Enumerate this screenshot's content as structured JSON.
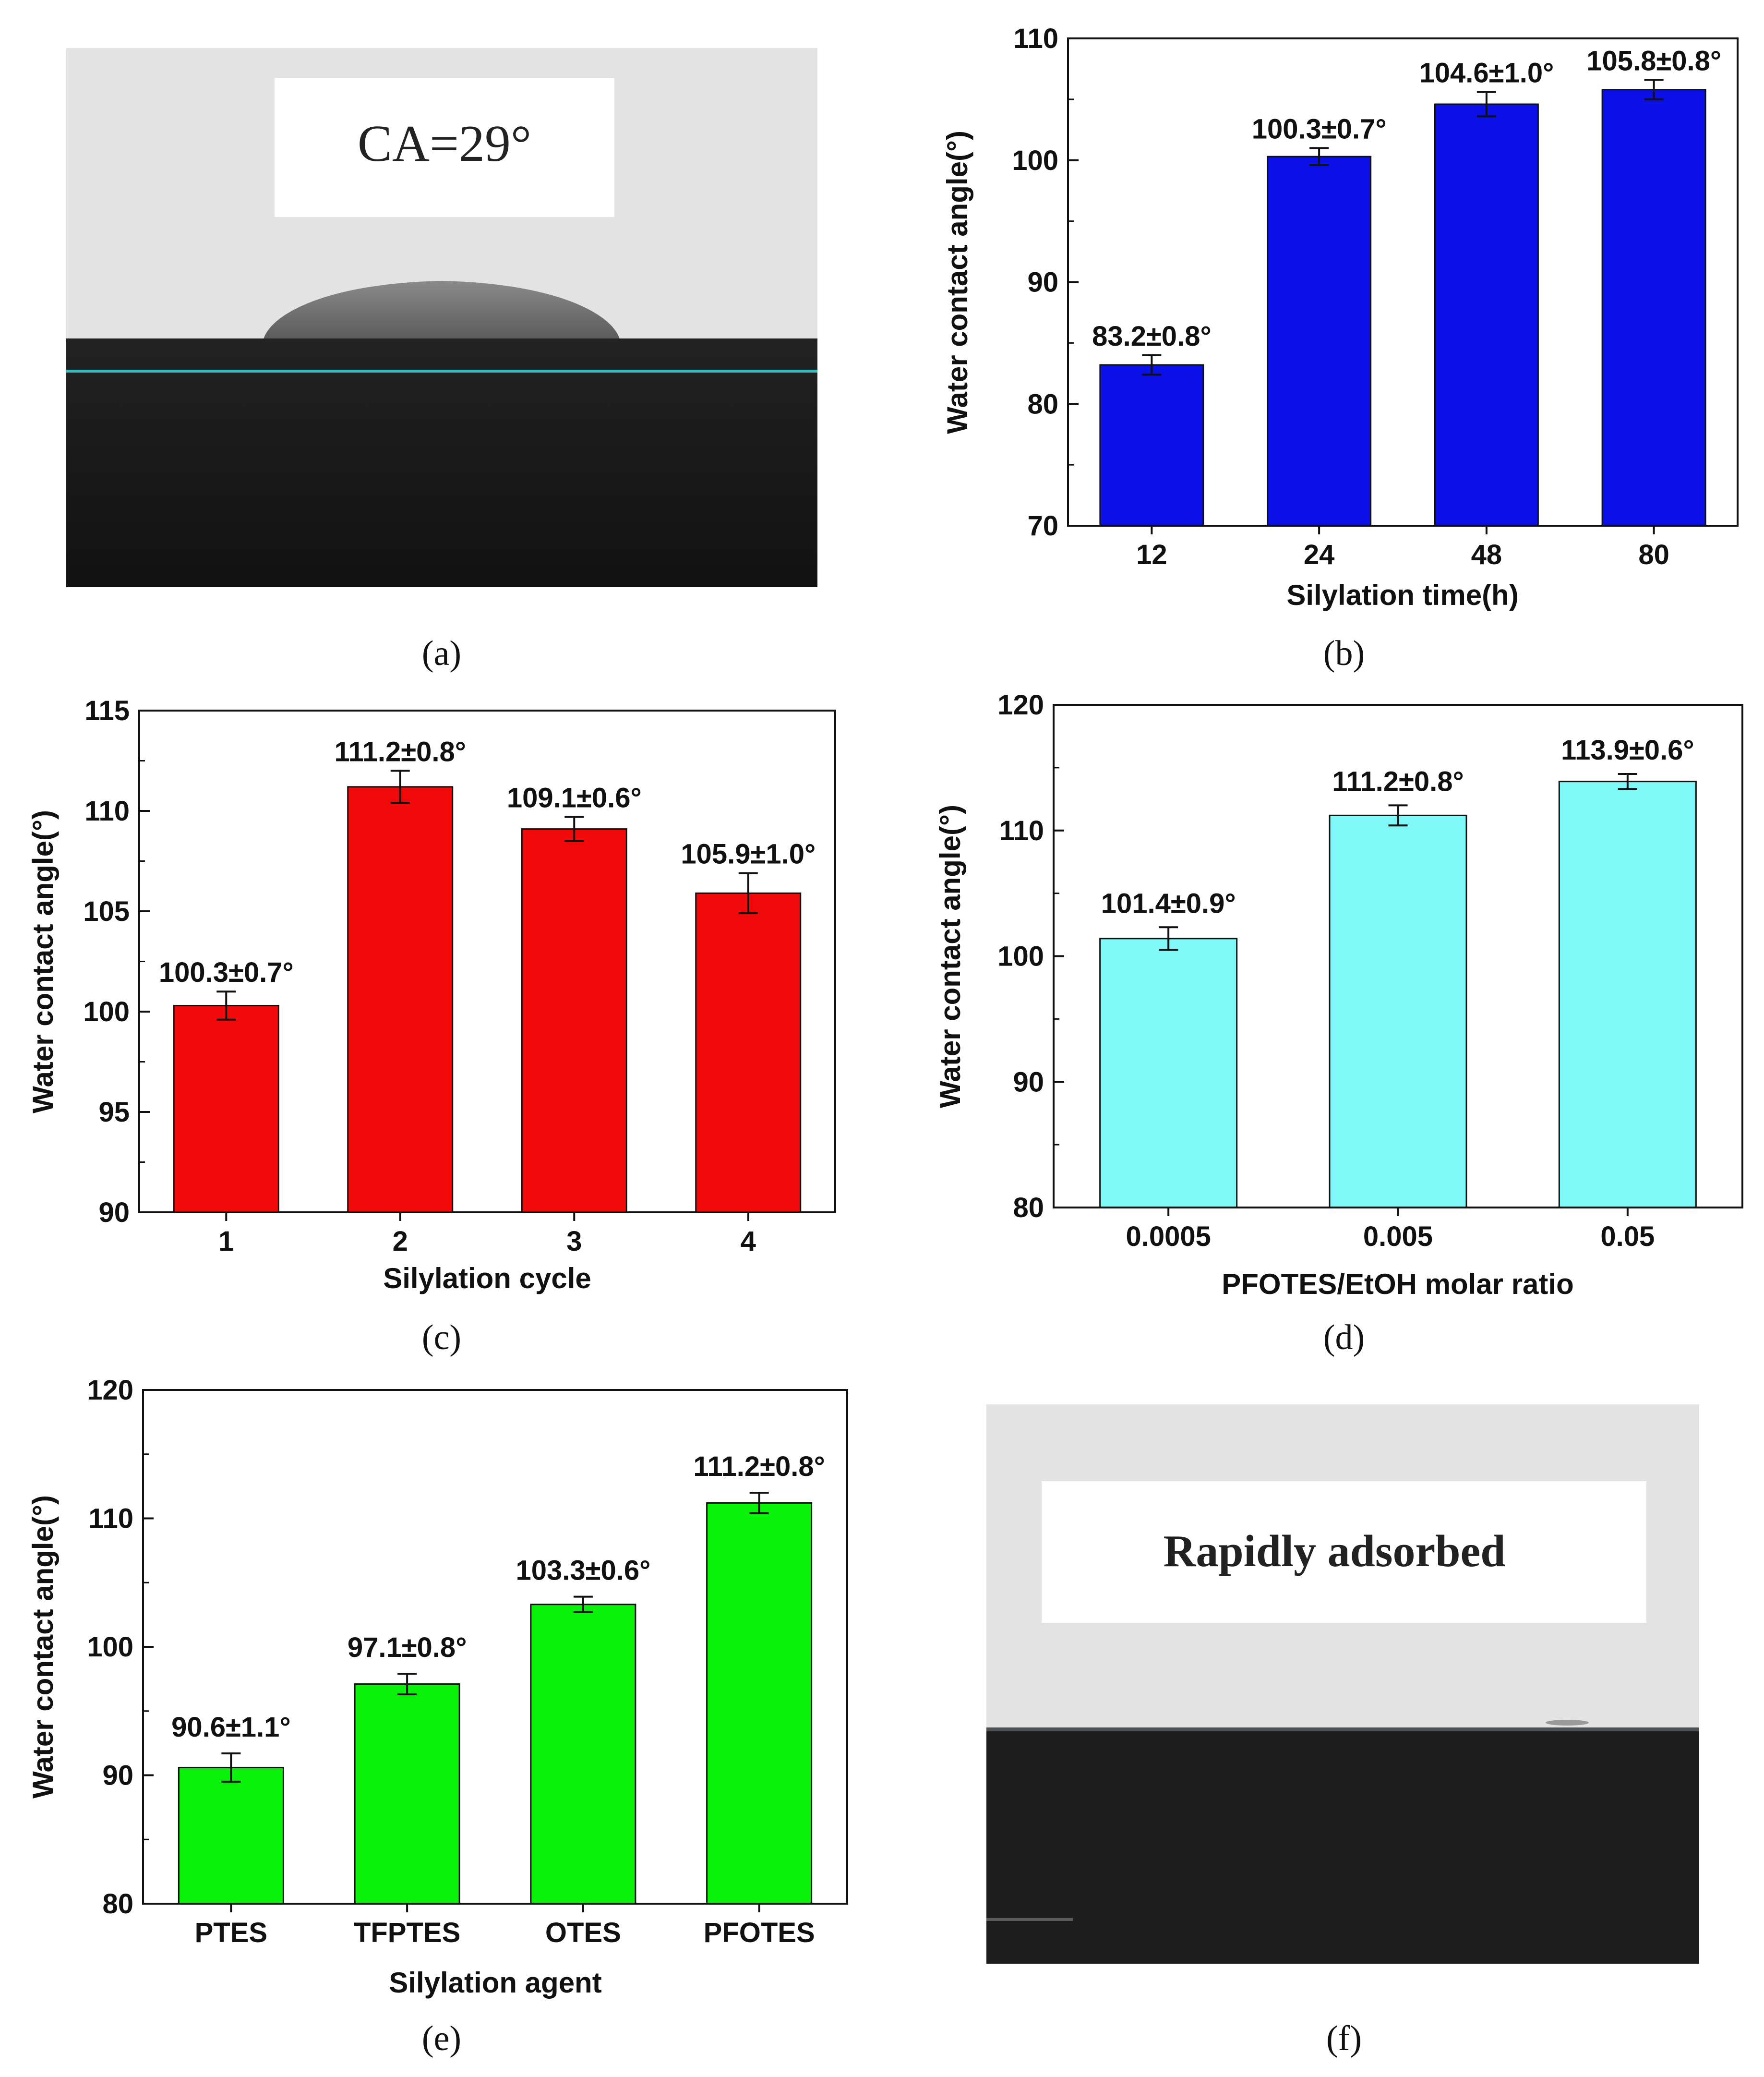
{
  "panels": {
    "a": {
      "caption": "(a)",
      "label": "CA=29°",
      "colors": {
        "sky": "#e3e3e3",
        "substrate": "#161616",
        "drop": "#707070",
        "baseline": "#3cb9bd"
      }
    },
    "f": {
      "caption": "(f)",
      "label": "Rapidly adsorbed",
      "colors": {
        "sky": "#e3e3e3",
        "substrate": "#1d1d1d"
      }
    }
  },
  "chart_data": [
    {
      "id": "b",
      "caption": "(b)",
      "type": "bar",
      "categories": [
        "12",
        "24",
        "48",
        "80"
      ],
      "values": [
        83.2,
        100.3,
        104.6,
        105.8
      ],
      "errors": [
        0.8,
        0.7,
        1.0,
        0.8
      ],
      "data_labels": [
        "83.2±0.8°",
        "100.3±0.7°",
        "104.6±1.0°",
        "105.8±0.8°"
      ],
      "xlabel": "Silylation time(h)",
      "ylabel": "Water contact angle(°)",
      "ylim": [
        70,
        110
      ],
      "yticks": [
        70,
        80,
        90,
        100,
        110
      ],
      "color": "#0a10e6"
    },
    {
      "id": "c",
      "caption": "(c)",
      "type": "bar",
      "categories": [
        "1",
        "2",
        "3",
        "4"
      ],
      "values": [
        100.3,
        111.2,
        109.1,
        105.9
      ],
      "errors": [
        0.7,
        0.8,
        0.6,
        1.0
      ],
      "data_labels": [
        "100.3±0.7°",
        "111.2±0.8°",
        "109.1±0.6°",
        "105.9±1.0°"
      ],
      "xlabel": "Silylation cycle",
      "ylabel": "Water contact angle(°)",
      "ylim": [
        90,
        115
      ],
      "yticks": [
        90,
        95,
        100,
        105,
        110,
        115
      ],
      "color": "#f20a0a"
    },
    {
      "id": "d",
      "caption": "(d)",
      "type": "bar",
      "categories": [
        "0.0005",
        "0.005",
        "0.05"
      ],
      "values": [
        101.4,
        111.2,
        113.9
      ],
      "errors": [
        0.9,
        0.8,
        0.6
      ],
      "data_labels": [
        "101.4±0.9°",
        "111.2±0.8°",
        "113.9±0.6°"
      ],
      "xlabel": "PFOTES/EtOH molar ratio",
      "ylabel": "Water contact angle(°)",
      "ylim": [
        80,
        120
      ],
      "yticks": [
        80,
        90,
        100,
        110,
        120
      ],
      "color": "#7ff9f7"
    },
    {
      "id": "e",
      "caption": "(e)",
      "type": "bar",
      "categories": [
        "PTES",
        "TFPTES",
        "OTES",
        "PFOTES"
      ],
      "values": [
        90.6,
        97.1,
        103.3,
        111.2
      ],
      "errors": [
        1.1,
        0.8,
        0.6,
        0.8
      ],
      "data_labels": [
        "90.6±1.1°",
        "97.1±0.8°",
        "103.3±0.6°",
        "111.2±0.8°"
      ],
      "xlabel": "Silylation agent",
      "ylabel": "Water contact angle(°)",
      "ylim": [
        80,
        120
      ],
      "yticks": [
        80,
        90,
        100,
        110,
        120
      ],
      "color": "#0af20a"
    }
  ]
}
